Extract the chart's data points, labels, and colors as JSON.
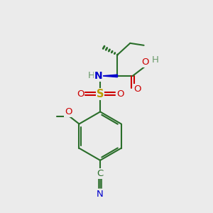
{
  "bg_color": "#ebebeb",
  "gc": "#2a6e2a",
  "sc": "#b8a000",
  "nc": "#0000cc",
  "oc": "#cc0000",
  "hc": "#6a9a6a",
  "figsize": [
    3.0,
    3.0
  ],
  "dpi": 100,
  "xlim": [
    0,
    10
  ],
  "ylim": [
    0,
    10
  ]
}
